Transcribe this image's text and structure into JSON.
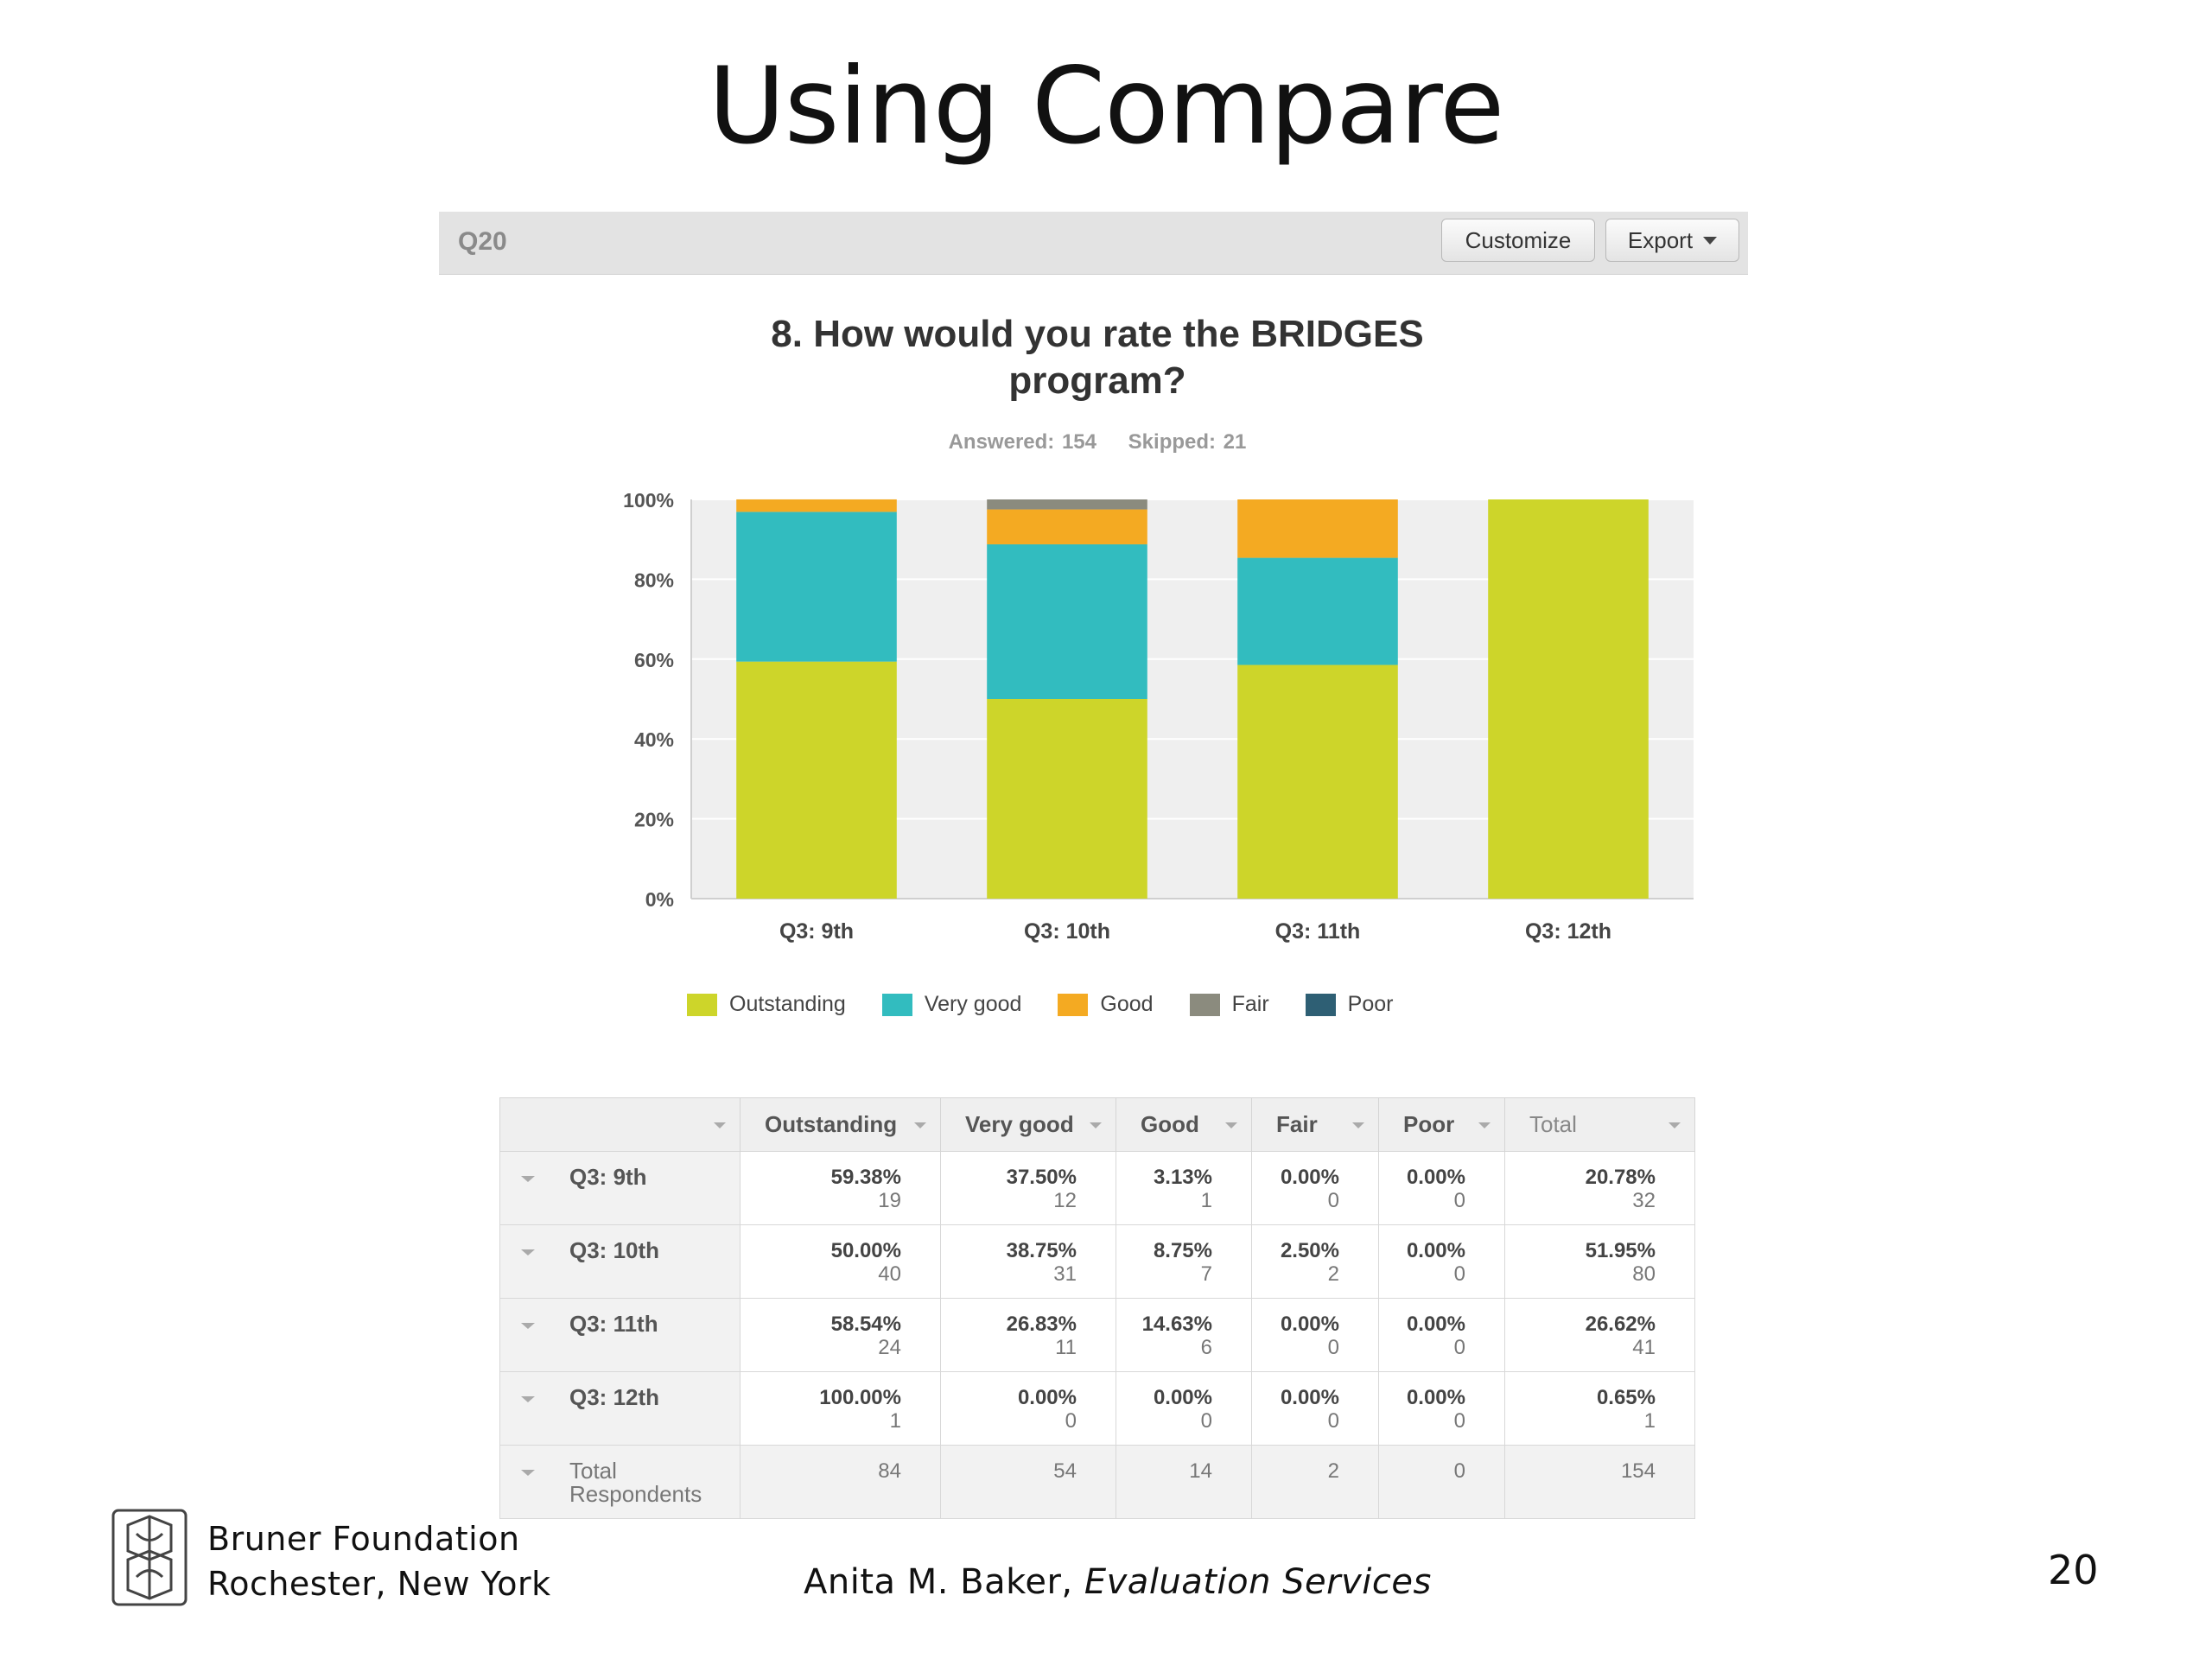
{
  "slide": {
    "title": "Using Compare",
    "org_line1": "Bruner Foundation",
    "org_line2": "Rochester, New York",
    "author_name": "Anita M. Baker,",
    "author_org": "Evaluation Services",
    "page_number": "20"
  },
  "toolbar": {
    "question_id": "Q20",
    "customize_label": "Customize",
    "export_label": "Export"
  },
  "question": {
    "title_line1": "8. How would you rate the BRIDGES",
    "title_line2": "program?",
    "answered": "Answered: 154",
    "skipped": "Skipped: 21"
  },
  "chart_data": {
    "type": "bar",
    "stacked": true,
    "categories": [
      "Q3: 9th",
      "Q3: 10th",
      "Q3: 11th",
      "Q3: 12th"
    ],
    "series": [
      {
        "name": "Outstanding",
        "color": "#cdd52a",
        "values": [
          59.38,
          50.0,
          58.54,
          100.0
        ]
      },
      {
        "name": "Very good",
        "color": "#32bcbf",
        "values": [
          37.5,
          38.75,
          26.83,
          0.0
        ]
      },
      {
        "name": "Good",
        "color": "#f4aa22",
        "values": [
          3.13,
          8.75,
          14.63,
          0.0
        ]
      },
      {
        "name": "Fair",
        "color": "#8b8b7e",
        "values": [
          0.0,
          2.5,
          0.0,
          0.0
        ]
      },
      {
        "name": "Poor",
        "color": "#2e5f74",
        "values": [
          0.0,
          0.0,
          0.0,
          0.0
        ]
      }
    ],
    "y_ticks": [
      "0%",
      "20%",
      "40%",
      "60%",
      "80%",
      "100%"
    ],
    "ylim": [
      0,
      100
    ],
    "legend_position": "bottom",
    "grid": true
  },
  "table": {
    "columns": [
      "Outstanding",
      "Very good",
      "Good",
      "Fair",
      "Poor",
      "Total"
    ],
    "rows": [
      {
        "label": "Q3: 9th",
        "cells": [
          {
            "pct": "59.38%",
            "n": "19"
          },
          {
            "pct": "37.50%",
            "n": "12"
          },
          {
            "pct": "3.13%",
            "n": "1"
          },
          {
            "pct": "0.00%",
            "n": "0"
          },
          {
            "pct": "0.00%",
            "n": "0"
          },
          {
            "pct": "20.78%",
            "n": "32"
          }
        ]
      },
      {
        "label": "Q3: 10th",
        "cells": [
          {
            "pct": "50.00%",
            "n": "40"
          },
          {
            "pct": "38.75%",
            "n": "31"
          },
          {
            "pct": "8.75%",
            "n": "7"
          },
          {
            "pct": "2.50%",
            "n": "2"
          },
          {
            "pct": "0.00%",
            "n": "0"
          },
          {
            "pct": "51.95%",
            "n": "80"
          }
        ]
      },
      {
        "label": "Q3: 11th",
        "cells": [
          {
            "pct": "58.54%",
            "n": "24"
          },
          {
            "pct": "26.83%",
            "n": "11"
          },
          {
            "pct": "14.63%",
            "n": "6"
          },
          {
            "pct": "0.00%",
            "n": "0"
          },
          {
            "pct": "0.00%",
            "n": "0"
          },
          {
            "pct": "26.62%",
            "n": "41"
          }
        ]
      },
      {
        "label": "Q3: 12th",
        "cells": [
          {
            "pct": "100.00%",
            "n": "1"
          },
          {
            "pct": "0.00%",
            "n": "0"
          },
          {
            "pct": "0.00%",
            "n": "0"
          },
          {
            "pct": "0.00%",
            "n": "0"
          },
          {
            "pct": "0.00%",
            "n": "0"
          },
          {
            "pct": "0.65%",
            "n": "1"
          }
        ]
      }
    ],
    "total_label_line1": "Total",
    "total_label_line2": "Respondents",
    "totals": [
      "84",
      "54",
      "14",
      "2",
      "0",
      "154"
    ]
  }
}
